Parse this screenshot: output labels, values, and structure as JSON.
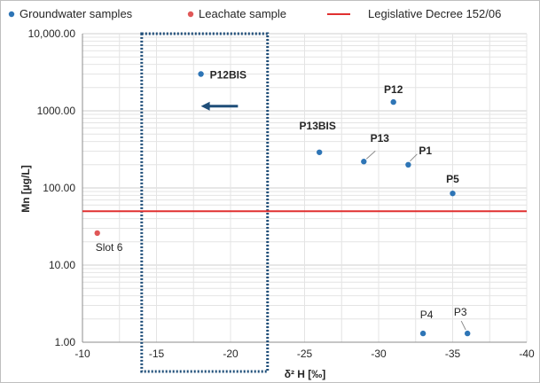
{
  "chart_data": {
    "type": "scatter",
    "title": "",
    "xlabel": "δ² H [‰]",
    "ylabel": "Mn [µg/L]",
    "xlim": [
      -10,
      -40
    ],
    "ylim": [
      1,
      10000
    ],
    "yscale": "log",
    "x_reversed": true,
    "grid": true,
    "legend_position": "top",
    "x_ticks": [
      "-10",
      "-15",
      "-20",
      "-25",
      "-30",
      "-35",
      "-40"
    ],
    "y_ticks": [
      "1.00",
      "10.00",
      "100.00",
      "1000.00",
      "10,000.00"
    ],
    "series": [
      {
        "name": "Groundwater samples",
        "color": "#2e75b6",
        "points": [
          {
            "label": "P12BIS",
            "x": -18,
            "y": 3000,
            "bold": true
          },
          {
            "label": "P12",
            "x": -31,
            "y": 1300,
            "bold": true
          },
          {
            "label": "P13BIS",
            "x": -26,
            "y": 290,
            "bold": true
          },
          {
            "label": "P13",
            "x": -29,
            "y": 220,
            "bold": true
          },
          {
            "label": "P1",
            "x": -32,
            "y": 200,
            "bold": true
          },
          {
            "label": "P5",
            "x": -35,
            "y": 85,
            "bold": true
          },
          {
            "label": "P4",
            "x": -33,
            "y": 1.3,
            "bold": false
          },
          {
            "label": "P3",
            "x": -36,
            "y": 1.3,
            "bold": false
          }
        ]
      },
      {
        "name": "Leachate sample",
        "color": "#e05757",
        "points": [
          {
            "label": "Slot 6",
            "x": -11,
            "y": 26,
            "bold": false
          }
        ]
      }
    ],
    "reference_lines": [
      {
        "name": "Legislative Decree 152/06",
        "y": 50,
        "color": "#e03030"
      }
    ],
    "highlight_box": {
      "x_from": -14,
      "x_to": -22.5,
      "color": "#1f4e79",
      "style": "dotted"
    },
    "arrow": {
      "from_x": -20.5,
      "to_x": -18,
      "y": 1150,
      "color": "#1f4e79"
    }
  }
}
